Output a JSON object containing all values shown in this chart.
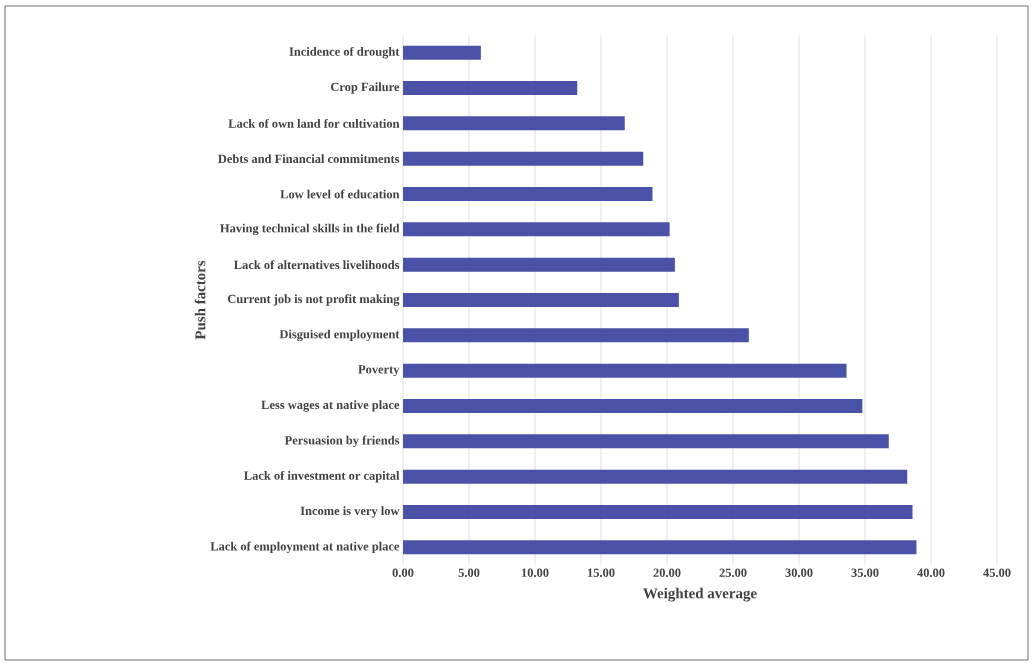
{
  "chart_data": {
    "type": "bar",
    "orientation": "horizontal",
    "xlabel": "Weighted average",
    "ylabel": "Push factors",
    "categories": [
      "Incidence of drought",
      "Crop Failure",
      "Lack of own land for cultivation",
      "Debts and Financial commitments",
      "Low level of education",
      "Having technical skills in the field",
      "Lack of alternatives livelihoods",
      "Current job is not profit making",
      "Disguised employment",
      "Poverty",
      "Less wages at native place",
      "Persuasion by friends",
      "Lack of investment or capital",
      "Income is very low",
      "Lack of employment at native place"
    ],
    "values": [
      5.9,
      13.2,
      16.8,
      18.2,
      18.9,
      20.2,
      20.6,
      20.9,
      26.2,
      33.6,
      34.8,
      36.8,
      38.2,
      38.6,
      38.9
    ],
    "color": "#4a52a8",
    "xlim": [
      0,
      45
    ],
    "xticks": [
      {
        "value": 0,
        "label": "0.00"
      },
      {
        "value": 5,
        "label": "5.00"
      },
      {
        "value": 10,
        "label": "10.00"
      },
      {
        "value": 15,
        "label": "15.00"
      },
      {
        "value": 20,
        "label": "20.00"
      },
      {
        "value": 25,
        "label": "25.00"
      },
      {
        "value": 30,
        "label": "30.00"
      },
      {
        "value": 35,
        "label": "35.00"
      },
      {
        "value": 40,
        "label": "40.00"
      },
      {
        "value": 45,
        "label": "45.00"
      }
    ],
    "grid": "x"
  }
}
